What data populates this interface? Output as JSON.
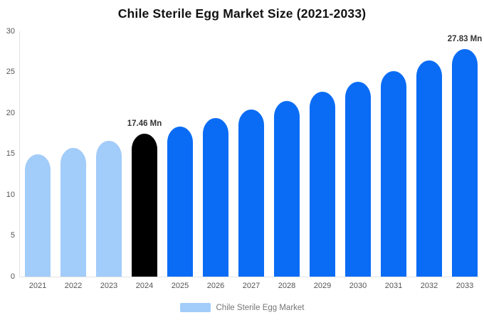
{
  "title": "Chile Sterile Egg Market Size (2021-2033)",
  "legend": {
    "label": "Chile Sterile Egg Market"
  },
  "colors": {
    "bar_past": "#a2ccf9",
    "bar_current": "#000000",
    "bar_forecast": "#0a6cf5",
    "axis_line": "#e3e3e3",
    "axis_label": "#555555",
    "value_label": "#333333",
    "legend_text": "#757575",
    "title": "#111111"
  },
  "chart_data": {
    "type": "bar",
    "title": "Chile Sterile Egg Market Size (2021-2033)",
    "categories": [
      "2021",
      "2022",
      "2023",
      "2024",
      "2025",
      "2026",
      "2027",
      "2028",
      "2029",
      "2030",
      "2031",
      "2032",
      "2033"
    ],
    "series": [
      {
        "name": "Chile Sterile Egg Market",
        "values": [
          14.94,
          15.73,
          16.57,
          17.46,
          18.39,
          19.37,
          20.4,
          21.48,
          22.63,
          23.83,
          25.1,
          26.43,
          27.83
        ]
      }
    ],
    "bar_colors": [
      "#a2ccf9",
      "#a2ccf9",
      "#a2ccf9",
      "#000000",
      "#0a6cf5",
      "#0a6cf5",
      "#0a6cf5",
      "#0a6cf5",
      "#0a6cf5",
      "#0a6cf5",
      "#0a6cf5",
      "#0a6cf5",
      "#0a6cf5"
    ],
    "annotations": [
      {
        "index": 3,
        "text": "17.46 Mn"
      },
      {
        "index": 12,
        "text": "27.83 Mn"
      }
    ],
    "unit": "Mn",
    "ylim": [
      0,
      30
    ],
    "yticks": [
      0,
      5,
      10,
      15,
      20,
      25,
      30
    ],
    "xlabel": "",
    "ylabel": "",
    "grid": false,
    "legend_position": "bottom"
  }
}
